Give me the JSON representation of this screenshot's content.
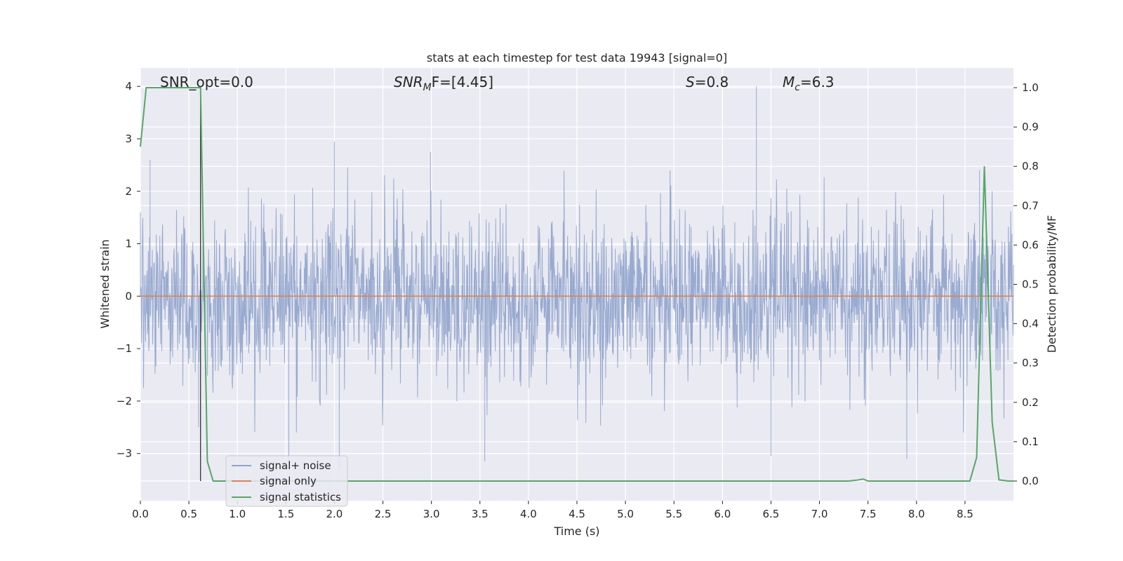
{
  "chart_data": {
    "type": "line",
    "title": "stats at each timestep for test data 19943 [signal=0]",
    "xlabel": "Time (s)",
    "ylabel_left": "Whitened strain",
    "ylabel_right": "Detection probability/MF",
    "xlim": [
      0.0,
      9.0
    ],
    "ylim_left": [
      -3.9,
      4.35
    ],
    "ylim_right": [
      -0.05,
      1.05
    ],
    "xticks": [
      "0.0",
      "0.5",
      "1.0",
      "1.5",
      "2.0",
      "2.5",
      "3.0",
      "3.5",
      "4.0",
      "4.5",
      "5.0",
      "5.5",
      "6.0",
      "6.5",
      "7.0",
      "7.5",
      "8.0",
      "8.5"
    ],
    "yticks_left": [
      "4",
      "3",
      "2",
      "1",
      "0",
      "−1",
      "−2",
      "−3"
    ],
    "yticks_right": [
      "1.0",
      "0.9",
      "0.8",
      "0.7",
      "0.6",
      "0.5",
      "0.4",
      "0.3",
      "0.2",
      "0.1",
      "0.0"
    ],
    "grid": true,
    "legend_placement": "lower-left",
    "annotations": {
      "snr_opt": "SNR_opt=0.0",
      "snr_mf_base": "SNR",
      "snr_mf_sub": "M",
      "snr_mf_rest": "F=[4.45]",
      "s_italic": "S",
      "s_rest": "=0.8",
      "mc_base": "M",
      "mc_sub": "c",
      "mc_rest": "=6.3"
    },
    "series": [
      {
        "name": "signal+ noise",
        "color": "#8fa3cc",
        "description_values": "whitened strain noise, approx gaussian, peak 4.0 at t=6.35, min -3.3 at t=1.53",
        "peaks": [
          {
            "x": 0.0,
            "y": 1.6
          },
          {
            "x": 0.1,
            "y": 2.6
          },
          {
            "x": 0.6,
            "y": -2.5
          },
          {
            "x": 1.53,
            "y": -3.3
          },
          {
            "x": 2.0,
            "y": 2.95
          },
          {
            "x": 2.05,
            "y": -3.3
          },
          {
            "x": 2.99,
            "y": 2.75
          },
          {
            "x": 3.55,
            "y": -3.15
          },
          {
            "x": 6.35,
            "y": 4.0
          },
          {
            "x": 6.5,
            "y": -3.05
          },
          {
            "x": 7.9,
            "y": -3.1
          },
          {
            "x": 8.65,
            "y": 2.4
          }
        ]
      },
      {
        "name": "signal only",
        "color": "#dd8452",
        "x": [
          0.0,
          9.0
        ],
        "y": [
          0.0,
          0.0
        ]
      },
      {
        "name": "signal statistics",
        "color": "#55a868",
        "axis": "right",
        "x": [
          0.0,
          0.06,
          0.1,
          0.2,
          0.3,
          0.4,
          0.5,
          0.55,
          0.6,
          0.62,
          0.69,
          0.75,
          0.8,
          1.0,
          2.0,
          3.0,
          4.0,
          5.0,
          6.0,
          7.0,
          7.3,
          7.38,
          7.45,
          7.5,
          7.6,
          8.0,
          8.55,
          8.62,
          8.7,
          8.78,
          8.85,
          8.95,
          9.0
        ],
        "y": [
          0.85,
          1.0,
          1.0,
          1.0,
          1.0,
          1.0,
          1.0,
          1.0,
          1.0,
          1.0,
          0.05,
          0.0,
          0.0,
          0.0,
          0.0,
          0.0,
          0.0,
          0.0,
          0.0,
          0.0,
          0.0,
          0.002,
          0.005,
          0.0,
          0.0,
          0.0,
          0.0,
          0.06,
          0.8,
          0.15,
          0.003,
          0.0,
          0.0
        ]
      }
    ],
    "marker_line": {
      "x": 0.62
    }
  }
}
